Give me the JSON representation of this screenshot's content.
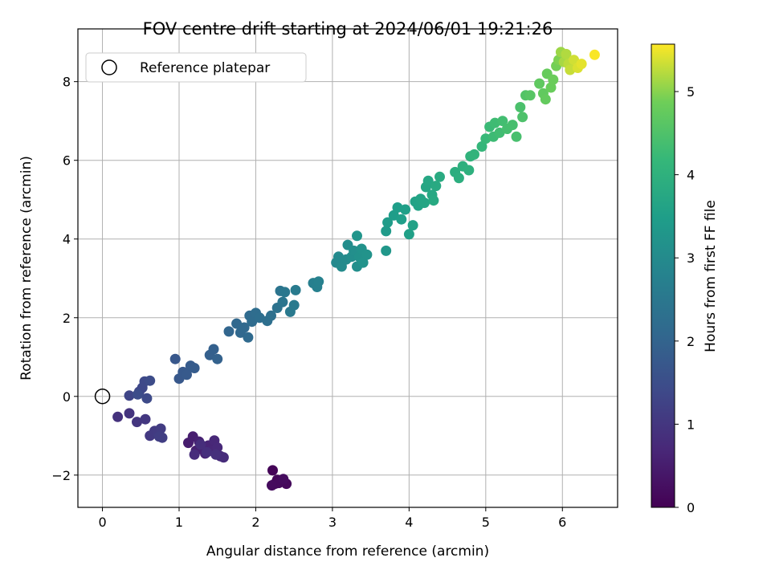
{
  "chart_data": {
    "type": "scatter",
    "title": "FOV centre drift starting at 2024/06/01 19:21:26",
    "xlabel": "Angular distance from reference (arcmin)",
    "ylabel": "Rotation from reference (arcmin)",
    "xlim": [
      -0.32,
      6.72
    ],
    "ylim": [
      -2.82,
      9.34
    ],
    "xticks": [
      0,
      1,
      2,
      3,
      4,
      5,
      6
    ],
    "yticks": [
      -2,
      0,
      2,
      4,
      6,
      8
    ],
    "grid": true,
    "legend": {
      "position": "top-left",
      "entries": [
        "Reference platepar"
      ]
    },
    "colorbar": {
      "label": "Hours from first FF file",
      "range": [
        0,
        5.57
      ],
      "ticks": [
        0,
        1,
        2,
        3,
        4,
        5
      ],
      "colormap": "viridis"
    },
    "reference_point": {
      "x": 0,
      "y": 0
    },
    "points": [
      {
        "x": 2.22,
        "y": -1.88,
        "c": 0.05
      },
      {
        "x": 2.25,
        "y": -2.22,
        "c": 0.08
      },
      {
        "x": 2.28,
        "y": -2.12,
        "c": 0.1
      },
      {
        "x": 2.34,
        "y": -2.15,
        "c": 0.12
      },
      {
        "x": 2.4,
        "y": -2.22,
        "c": 0.14
      },
      {
        "x": 2.3,
        "y": -2.2,
        "c": 0.16
      },
      {
        "x": 2.21,
        "y": -2.26,
        "c": 0.18
      },
      {
        "x": 2.36,
        "y": -2.1,
        "c": 0.2
      },
      {
        "x": 1.12,
        "y": -1.18,
        "c": 0.5
      },
      {
        "x": 1.18,
        "y": -1.02,
        "c": 0.52
      },
      {
        "x": 1.22,
        "y": -1.38,
        "c": 0.55
      },
      {
        "x": 1.26,
        "y": -1.15,
        "c": 0.58
      },
      {
        "x": 1.3,
        "y": -1.3,
        "c": 0.6
      },
      {
        "x": 1.34,
        "y": -1.45,
        "c": 0.62
      },
      {
        "x": 1.38,
        "y": -1.25,
        "c": 0.65
      },
      {
        "x": 1.42,
        "y": -1.38,
        "c": 0.68
      },
      {
        "x": 1.46,
        "y": -1.12,
        "c": 0.7
      },
      {
        "x": 1.5,
        "y": -1.3,
        "c": 0.72
      },
      {
        "x": 1.54,
        "y": -1.52,
        "c": 0.75
      },
      {
        "x": 1.58,
        "y": -1.55,
        "c": 0.78
      },
      {
        "x": 1.2,
        "y": -1.48,
        "c": 0.8
      },
      {
        "x": 1.28,
        "y": -1.22,
        "c": 0.82
      },
      {
        "x": 1.36,
        "y": -1.42,
        "c": 0.85
      },
      {
        "x": 1.48,
        "y": -1.48,
        "c": 0.86
      },
      {
        "x": 0.2,
        "y": -0.52,
        "c": 0.9
      },
      {
        "x": 0.35,
        "y": -0.43,
        "c": 0.95
      },
      {
        "x": 0.45,
        "y": -0.65,
        "c": 1.0
      },
      {
        "x": 0.56,
        "y": -0.58,
        "c": 1.02
      },
      {
        "x": 0.62,
        "y": -1.0,
        "c": 1.05
      },
      {
        "x": 0.68,
        "y": -0.88,
        "c": 1.08
      },
      {
        "x": 0.72,
        "y": -0.95,
        "c": 1.1
      },
      {
        "x": 0.76,
        "y": -0.82,
        "c": 1.12
      },
      {
        "x": 0.78,
        "y": -1.05,
        "c": 1.15
      },
      {
        "x": 0.74,
        "y": -1.02,
        "c": 1.16
      },
      {
        "x": 0.35,
        "y": 0.02,
        "c": 1.3
      },
      {
        "x": 0.48,
        "y": 0.12,
        "c": 1.35
      },
      {
        "x": 0.52,
        "y": 0.22,
        "c": 1.38
      },
      {
        "x": 0.55,
        "y": 0.38,
        "c": 1.4
      },
      {
        "x": 0.58,
        "y": -0.05,
        "c": 1.42
      },
      {
        "x": 0.62,
        "y": 0.4,
        "c": 1.45
      },
      {
        "x": 0.46,
        "y": 0.05,
        "c": 1.48
      },
      {
        "x": 0.95,
        "y": 0.95,
        "c": 1.7
      },
      {
        "x": 1.0,
        "y": 0.45,
        "c": 1.72
      },
      {
        "x": 1.05,
        "y": 0.62,
        "c": 1.75
      },
      {
        "x": 1.1,
        "y": 0.55,
        "c": 1.78
      },
      {
        "x": 1.15,
        "y": 0.78,
        "c": 1.8
      },
      {
        "x": 1.2,
        "y": 0.72,
        "c": 1.82
      },
      {
        "x": 1.4,
        "y": 1.05,
        "c": 1.9
      },
      {
        "x": 1.45,
        "y": 1.2,
        "c": 1.92
      },
      {
        "x": 1.5,
        "y": 0.95,
        "c": 1.95
      },
      {
        "x": 1.65,
        "y": 1.65,
        "c": 2.05
      },
      {
        "x": 1.75,
        "y": 1.85,
        "c": 2.08
      },
      {
        "x": 1.8,
        "y": 1.62,
        "c": 2.1
      },
      {
        "x": 1.85,
        "y": 1.75,
        "c": 2.12
      },
      {
        "x": 1.9,
        "y": 1.5,
        "c": 2.15
      },
      {
        "x": 1.92,
        "y": 2.05,
        "c": 2.18
      },
      {
        "x": 1.95,
        "y": 1.9,
        "c": 2.2
      },
      {
        "x": 2.0,
        "y": 2.12,
        "c": 2.22
      },
      {
        "x": 2.05,
        "y": 2.0,
        "c": 2.25
      },
      {
        "x": 2.15,
        "y": 1.92,
        "c": 2.28
      },
      {
        "x": 2.2,
        "y": 2.05,
        "c": 2.3
      },
      {
        "x": 2.28,
        "y": 2.25,
        "c": 2.35
      },
      {
        "x": 2.32,
        "y": 2.68,
        "c": 2.4
      },
      {
        "x": 2.35,
        "y": 2.4,
        "c": 2.45
      },
      {
        "x": 2.38,
        "y": 2.65,
        "c": 2.5
      },
      {
        "x": 2.45,
        "y": 2.15,
        "c": 2.55
      },
      {
        "x": 2.5,
        "y": 2.32,
        "c": 2.58
      },
      {
        "x": 2.52,
        "y": 2.7,
        "c": 2.6
      },
      {
        "x": 2.75,
        "y": 2.88,
        "c": 2.7
      },
      {
        "x": 2.8,
        "y": 2.78,
        "c": 2.72
      },
      {
        "x": 2.82,
        "y": 2.92,
        "c": 2.75
      },
      {
        "x": 3.05,
        "y": 3.4,
        "c": 2.95
      },
      {
        "x": 3.08,
        "y": 3.55,
        "c": 2.98
      },
      {
        "x": 3.12,
        "y": 3.3,
        "c": 3.0
      },
      {
        "x": 3.18,
        "y": 3.48,
        "c": 3.02
      },
      {
        "x": 3.2,
        "y": 3.85,
        "c": 3.05
      },
      {
        "x": 3.25,
        "y": 3.55,
        "c": 3.08
      },
      {
        "x": 3.28,
        "y": 3.7,
        "c": 3.1
      },
      {
        "x": 3.32,
        "y": 3.3,
        "c": 3.12
      },
      {
        "x": 3.35,
        "y": 3.55,
        "c": 3.15
      },
      {
        "x": 3.38,
        "y": 3.75,
        "c": 3.18
      },
      {
        "x": 3.4,
        "y": 3.4,
        "c": 3.2
      },
      {
        "x": 3.45,
        "y": 3.6,
        "c": 3.22
      },
      {
        "x": 3.32,
        "y": 4.08,
        "c": 3.25
      },
      {
        "x": 3.7,
        "y": 3.7,
        "c": 3.3
      },
      {
        "x": 3.7,
        "y": 4.2,
        "c": 3.4
      },
      {
        "x": 3.72,
        "y": 4.42,
        "c": 3.42
      },
      {
        "x": 3.8,
        "y": 4.6,
        "c": 3.45
      },
      {
        "x": 3.85,
        "y": 4.8,
        "c": 3.48
      },
      {
        "x": 3.9,
        "y": 4.5,
        "c": 3.5
      },
      {
        "x": 3.95,
        "y": 4.75,
        "c": 3.52
      },
      {
        "x": 4.0,
        "y": 4.12,
        "c": 3.55
      },
      {
        "x": 4.05,
        "y": 4.35,
        "c": 3.58
      },
      {
        "x": 4.08,
        "y": 4.95,
        "c": 3.6
      },
      {
        "x": 4.12,
        "y": 4.85,
        "c": 3.62
      },
      {
        "x": 4.15,
        "y": 5.02,
        "c": 3.65
      },
      {
        "x": 4.2,
        "y": 4.92,
        "c": 3.68
      },
      {
        "x": 4.22,
        "y": 5.32,
        "c": 3.7
      },
      {
        "x": 4.25,
        "y": 5.48,
        "c": 3.72
      },
      {
        "x": 4.3,
        "y": 5.12,
        "c": 3.75
      },
      {
        "x": 4.32,
        "y": 4.98,
        "c": 3.78
      },
      {
        "x": 4.35,
        "y": 5.35,
        "c": 3.8
      },
      {
        "x": 4.4,
        "y": 5.58,
        "c": 3.82
      },
      {
        "x": 4.6,
        "y": 5.7,
        "c": 3.9
      },
      {
        "x": 4.65,
        "y": 5.55,
        "c": 3.92
      },
      {
        "x": 4.7,
        "y": 5.85,
        "c": 3.95
      },
      {
        "x": 4.78,
        "y": 5.75,
        "c": 3.98
      },
      {
        "x": 4.8,
        "y": 6.1,
        "c": 4.05
      },
      {
        "x": 4.85,
        "y": 6.15,
        "c": 4.08
      },
      {
        "x": 4.95,
        "y": 6.35,
        "c": 4.15
      },
      {
        "x": 5.0,
        "y": 6.55,
        "c": 4.2
      },
      {
        "x": 5.05,
        "y": 6.85,
        "c": 4.25
      },
      {
        "x": 5.1,
        "y": 6.6,
        "c": 4.28
      },
      {
        "x": 5.12,
        "y": 6.95,
        "c": 4.3
      },
      {
        "x": 5.18,
        "y": 6.7,
        "c": 4.32
      },
      {
        "x": 5.22,
        "y": 7.0,
        "c": 4.35
      },
      {
        "x": 5.28,
        "y": 6.8,
        "c": 4.38
      },
      {
        "x": 5.35,
        "y": 6.9,
        "c": 4.4
      },
      {
        "x": 5.4,
        "y": 6.6,
        "c": 4.42
      },
      {
        "x": 5.45,
        "y": 7.35,
        "c": 4.45
      },
      {
        "x": 5.48,
        "y": 7.1,
        "c": 4.48
      },
      {
        "x": 5.52,
        "y": 7.65,
        "c": 4.55
      },
      {
        "x": 5.58,
        "y": 7.65,
        "c": 4.6
      },
      {
        "x": 5.7,
        "y": 7.95,
        "c": 4.7
      },
      {
        "x": 5.75,
        "y": 7.7,
        "c": 4.72
      },
      {
        "x": 5.78,
        "y": 7.55,
        "c": 4.75
      },
      {
        "x": 5.8,
        "y": 8.2,
        "c": 4.78
      },
      {
        "x": 5.85,
        "y": 7.85,
        "c": 4.8
      },
      {
        "x": 5.88,
        "y": 8.05,
        "c": 4.82
      },
      {
        "x": 5.92,
        "y": 8.4,
        "c": 4.9
      },
      {
        "x": 5.95,
        "y": 8.55,
        "c": 4.95
      },
      {
        "x": 5.98,
        "y": 8.75,
        "c": 5.1
      },
      {
        "x": 6.02,
        "y": 8.5,
        "c": 5.15
      },
      {
        "x": 6.05,
        "y": 8.7,
        "c": 5.2
      },
      {
        "x": 6.08,
        "y": 8.45,
        "c": 5.25
      },
      {
        "x": 6.1,
        "y": 8.3,
        "c": 5.3
      },
      {
        "x": 6.15,
        "y": 8.55,
        "c": 5.35
      },
      {
        "x": 6.2,
        "y": 8.35,
        "c": 5.4
      },
      {
        "x": 6.25,
        "y": 8.45,
        "c": 5.45
      },
      {
        "x": 6.42,
        "y": 8.68,
        "c": 5.55
      }
    ]
  }
}
